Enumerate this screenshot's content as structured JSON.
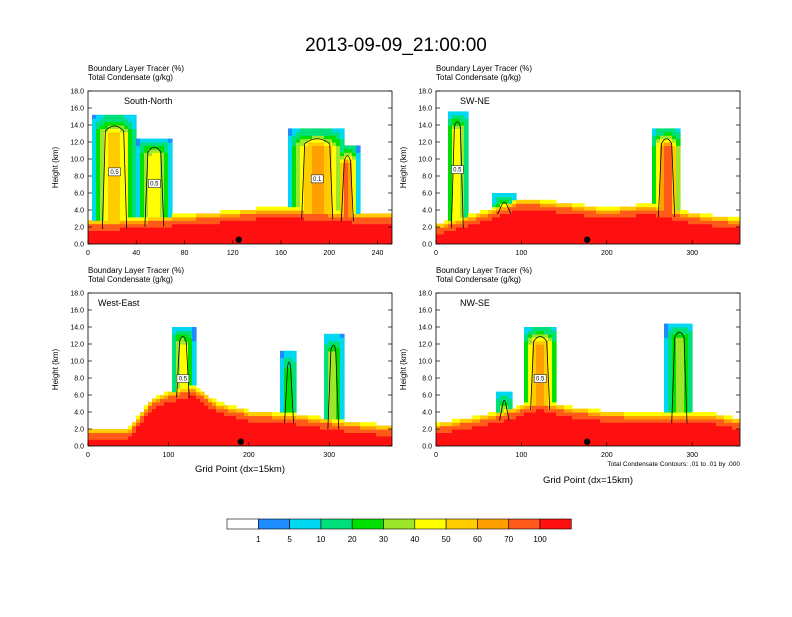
{
  "title": "2013-09-09_21:00:00",
  "colors": {
    "levels": [
      "#ffffff",
      "#1e8cff",
      "#00d8f2",
      "#00e07a",
      "#00e000",
      "#9ee62a",
      "#ffff00",
      "#ffcc00",
      "#ffa000",
      "#ff5a1a",
      "#ff1010"
    ],
    "contour": "#000000"
  },
  "panels": [
    {
      "id": "south-north",
      "label": "South-North",
      "header_line1": "Boundary Layer Tracer    (%)",
      "header_line2": "Total Condensate    (g/kg)",
      "y_label": "Height (km)",
      "y_ticks": [
        "0.0",
        "2.0",
        "4.0",
        "6.0",
        "8.0",
        "10.0",
        "12.0",
        "14.0",
        "16.0",
        "18.0"
      ],
      "x_ticks": [
        "0",
        "40",
        "80",
        "120",
        "160",
        "200",
        "240"
      ],
      "xmax": 252,
      "contour_labels": [
        "0.5",
        "0.5",
        "0.1"
      ],
      "marker_x": 125
    },
    {
      "id": "sw-ne",
      "label": "SW-NE",
      "header_line1": "Boundary Layer Tracer    (%)",
      "header_line2": "Total Condensate    (g/kg)",
      "y_label": "Height (km)",
      "y_ticks": [
        "0.0",
        "2.0",
        "4.0",
        "6.0",
        "8.0",
        "10.0",
        "12.0",
        "14.0",
        "16.0",
        "18.0"
      ],
      "x_ticks": [
        "0",
        "100",
        "200",
        "300"
      ],
      "xmax": 356,
      "contour_labels": [
        "0.5"
      ],
      "marker_x": 177
    },
    {
      "id": "west-east",
      "label": "West-East",
      "header_line1": "Boundary Layer Tracer    (%)",
      "header_line2": "Total Condensate    (g/kg)",
      "y_label": "Height (km)",
      "y_ticks": [
        "0.0",
        "2.0",
        "4.0",
        "6.0",
        "8.0",
        "10.0",
        "12.0",
        "14.0",
        "16.0",
        "18.0"
      ],
      "x_ticks": [
        "0",
        "100",
        "200",
        "300"
      ],
      "xmax": 378,
      "x_label": "Grid Point (dx=15km)",
      "contour_labels": [
        "0.5"
      ],
      "marker_x": 190
    },
    {
      "id": "nw-se",
      "label": "NW-SE",
      "header_line1": "Boundary Layer Tracer    (%)",
      "header_line2": "Total Condensate    (g/kg)",
      "y_label": "Height (km)",
      "y_ticks": [
        "0.0",
        "2.0",
        "4.0",
        "6.0",
        "8.0",
        "10.0",
        "12.0",
        "14.0",
        "16.0",
        "18.0"
      ],
      "x_ticks": [
        "0",
        "100",
        "200",
        "300"
      ],
      "xmax": 356,
      "x_label": "Grid Point (dx=15km)",
      "contour_labels": [
        "0.5"
      ],
      "marker_x": 177,
      "footnote": "Total Condensate Contours: .01 to .01 by .000"
    }
  ],
  "colorbar": {
    "labels": [
      "1",
      "5",
      "10",
      "20",
      "30",
      "40",
      "50",
      "60",
      "70",
      "100"
    ]
  },
  "chart_data": {
    "type": "heatmap",
    "title": "2013-09-09_21:00:00",
    "variable": "Boundary Layer Tracer (%)",
    "contour_variable": "Total Condensate (g/kg)",
    "ylim": [
      0,
      18
    ],
    "ylabel": "Height (km)",
    "xlabel": "Grid Point (dx=15km)",
    "levels": [
      1,
      5,
      10,
      20,
      30,
      40,
      50,
      60,
      70,
      100
    ],
    "panels": [
      {
        "name": "South-North",
        "xlim": [
          0,
          252
        ],
        "surface_layer": {
          "x": [
            0,
            40,
            80,
            120,
            150,
            180,
            220,
            252
          ],
          "top_km": [
            1.6,
            1.9,
            2.3,
            2.7,
            3.2,
            3.0,
            2.6,
            2.4
          ]
        },
        "plumes": [
          {
            "x_center": 22,
            "width": 36,
            "top_km": 15.0,
            "tracer_pct": 50
          },
          {
            "x_center": 55,
            "width": 28,
            "top_km": 12.5,
            "tracer_pct": 40
          },
          {
            "x_center": 190,
            "width": 46,
            "top_km": 13.5,
            "tracer_pct": 60
          },
          {
            "x_center": 215,
            "width": 18,
            "top_km": 11.5,
            "tracer_pct": 70
          }
        ]
      },
      {
        "name": "SW-NE",
        "xlim": [
          0,
          356
        ],
        "surface_layer": {
          "x": [
            0,
            50,
            100,
            150,
            200,
            250,
            300,
            356
          ],
          "top_km": [
            1.2,
            2.5,
            4.2,
            3.7,
            3.0,
            3.6,
            2.5,
            1.8
          ]
        },
        "plumes": [
          {
            "x_center": 25,
            "width": 25,
            "top_km": 15.5,
            "tracer_pct": 40
          },
          {
            "x_center": 80,
            "width": 28,
            "top_km": 6.0,
            "tracer_pct": 40
          },
          {
            "x_center": 270,
            "width": 34,
            "top_km": 13.5,
            "tracer_pct": 70
          }
        ]
      },
      {
        "name": "West-East",
        "xlim": [
          0,
          378
        ],
        "surface_layer": {
          "x": [
            0,
            50,
            80,
            110,
            130,
            160,
            200,
            260,
            320,
            378
          ],
          "top_km": [
            0.8,
            0.9,
            4.5,
            5.5,
            6.0,
            4.0,
            3.0,
            2.6,
            1.8,
            1.2
          ]
        },
        "plumes": [
          {
            "x_center": 118,
            "width": 28,
            "top_km": 14.0,
            "tracer_pct": 40
          },
          {
            "x_center": 250,
            "width": 20,
            "top_km": 11.0,
            "tracer_pct": 20
          },
          {
            "x_center": 305,
            "width": 24,
            "top_km": 13.0,
            "tracer_pct": 30
          }
        ]
      },
      {
        "name": "NW-SE",
        "xlim": [
          0,
          356
        ],
        "surface_layer": {
          "x": [
            0,
            40,
            80,
            120,
            160,
            200,
            260,
            320,
            356
          ],
          "top_km": [
            1.5,
            2.2,
            3.0,
            4.3,
            3.4,
            2.9,
            2.6,
            2.8,
            2.0
          ]
        },
        "plumes": [
          {
            "x_center": 122,
            "width": 40,
            "top_km": 14.0,
            "tracer_pct": 60
          },
          {
            "x_center": 285,
            "width": 32,
            "top_km": 14.5,
            "tracer_pct": 30
          },
          {
            "x_center": 80,
            "width": 20,
            "top_km": 6.5,
            "tracer_pct": 30
          }
        ]
      }
    ]
  }
}
